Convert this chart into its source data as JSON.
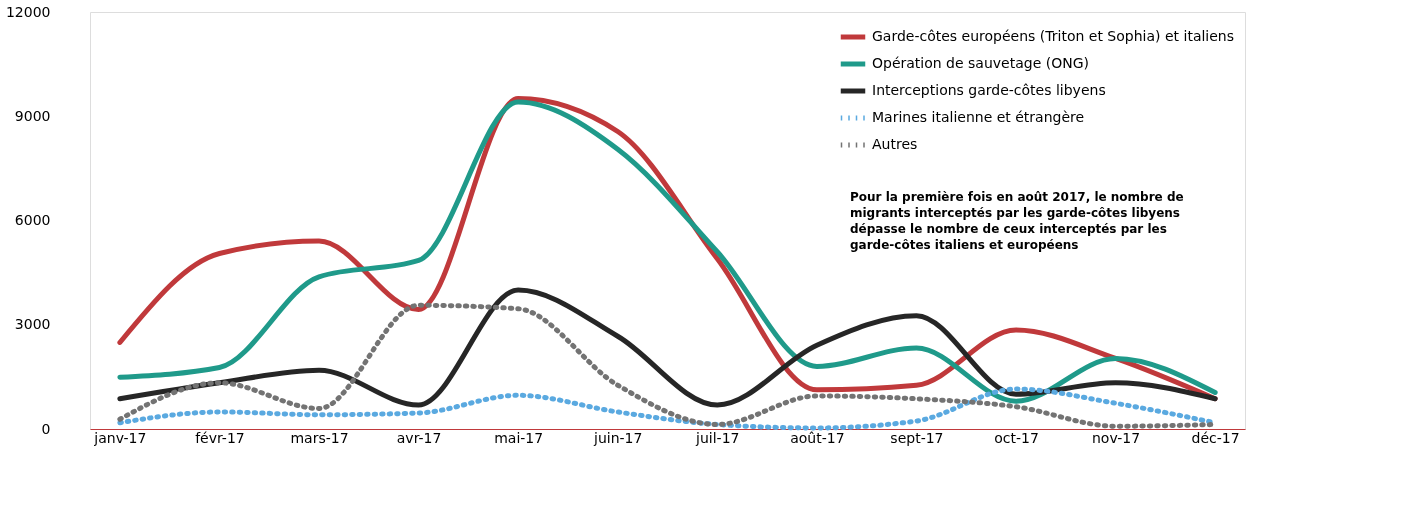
{
  "chart_data": {
    "type": "line",
    "categories": [
      "janv-17",
      "févr-17",
      "mars-17",
      "avr-17",
      "mai-17",
      "juin-17",
      "juil-17",
      "août-17",
      "sept-17",
      "oct-17",
      "nov-17",
      "déc-17"
    ],
    "series": [
      {
        "name": "Garde-côtes européens (Triton et Sophia) et italiens",
        "color": "#c0393b",
        "line_style": "solid",
        "values": [
          2490,
          5050,
          5410,
          3440,
          9510,
          8560,
          4900,
          1130,
          1260,
          2850,
          2030,
          870
        ]
      },
      {
        "name": "Opération de sauvetage (ONG)",
        "color": "#1f9a8a",
        "line_style": "solid",
        "values": [
          1490,
          1770,
          4380,
          4850,
          9410,
          8050,
          5100,
          1800,
          2330,
          800,
          2030,
          1050
        ]
      },
      {
        "name": "Interceptions garde-côtes libyens",
        "color": "#262626",
        "line_style": "solid",
        "values": [
          870,
          1330,
          1690,
          690,
          4000,
          2670,
          690,
          2410,
          3260,
          1000,
          1330,
          870
        ]
      },
      {
        "name": "Marines italienne et étrangère",
        "color": "#5aa9e0",
        "line_style": "dotted",
        "values": [
          180,
          490,
          410,
          460,
          970,
          490,
          130,
          30,
          230,
          1150,
          740,
          180
        ]
      },
      {
        "name": "Autres",
        "color": "#737373",
        "line_style": "dotted",
        "values": [
          280,
          1330,
          590,
          3560,
          3460,
          1260,
          130,
          950,
          870,
          640,
          80,
          130
        ]
      }
    ],
    "ylim": [
      0,
      12000
    ],
    "yticks": [
      0,
      3000,
      6000,
      9000,
      12000
    ],
    "grid": false,
    "legend": "top right",
    "annotations": [
      "Pour la première fois en août 2017, le nombre de\nmigrants interceptés par les garde-côtes libyens\ndépasse le nombre de ceux interceptés par les\ngarde-côtes italiens et européens"
    ]
  }
}
